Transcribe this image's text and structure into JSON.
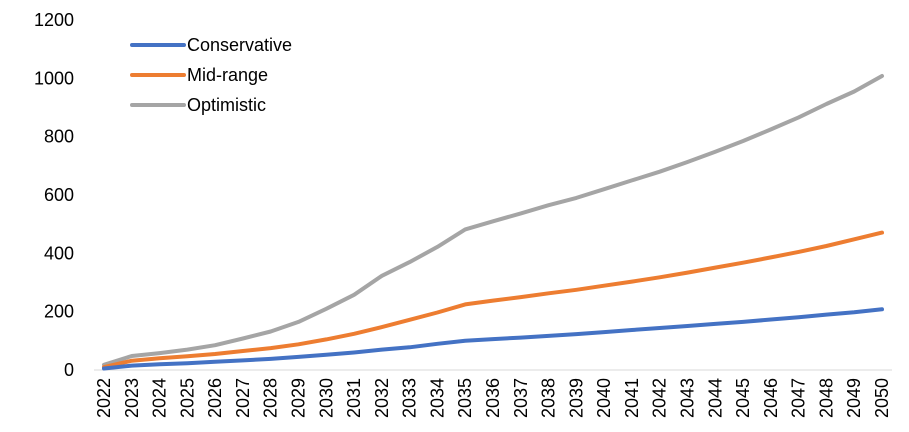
{
  "chart_data": {
    "type": "line",
    "title": "",
    "xlabel": "",
    "ylabel": "",
    "ylim": [
      0,
      1200
    ],
    "yticks": [
      0,
      200,
      400,
      600,
      800,
      1000,
      1200
    ],
    "grid": false,
    "legend_position": "top-left",
    "x": [
      "2022",
      "2023",
      "2024",
      "2025",
      "2026",
      "2027",
      "2028",
      "2029",
      "2030",
      "2031",
      "2032",
      "2033",
      "2034",
      "2035",
      "2036",
      "2037",
      "2038",
      "2039",
      "2040",
      "2041",
      "2042",
      "2043",
      "2044",
      "2045",
      "2046",
      "2047",
      "2048",
      "2049",
      "2050"
    ],
    "series": [
      {
        "name": "Conservative",
        "color": "#4472C4",
        "values": [
          5,
          15,
          20,
          23,
          28,
          33,
          38,
          45,
          52,
          60,
          70,
          78,
          90,
          100,
          106,
          111,
          117,
          123,
          130,
          137,
          144,
          151,
          158,
          165,
          173,
          181,
          190,
          198,
          208
        ]
      },
      {
        "name": "Mid-range",
        "color": "#ED7D31",
        "values": [
          10,
          32,
          40,
          47,
          55,
          65,
          75,
          88,
          105,
          124,
          147,
          172,
          197,
          225,
          238,
          250,
          263,
          275,
          289,
          303,
          318,
          334,
          351,
          368,
          386,
          405,
          425,
          448,
          471
        ]
      },
      {
        "name": "Optimistic",
        "color": "#A5A5A5",
        "values": [
          18,
          48,
          58,
          70,
          85,
          108,
          132,
          165,
          210,
          258,
          323,
          370,
          422,
          482,
          510,
          537,
          565,
          590,
          620,
          650,
          680,
          713,
          748,
          785,
          825,
          866,
          912,
          955,
          1008
        ]
      }
    ]
  }
}
